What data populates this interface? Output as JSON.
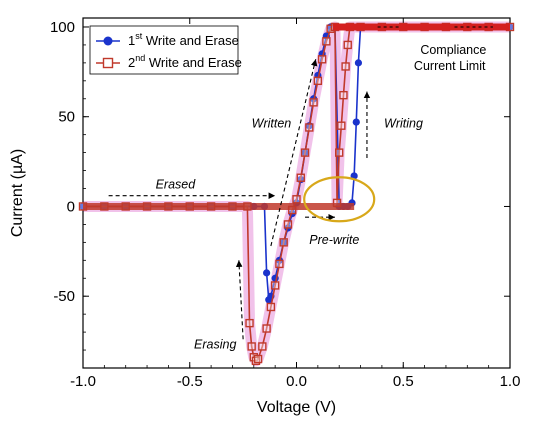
{
  "chart_data": {
    "type": "scatter",
    "xlabel": "Voltage (V)",
    "ylabel": "Current (µA)",
    "xlim": [
      -1.0,
      1.0
    ],
    "ylim": [
      -90,
      105
    ],
    "x_ticks": [
      -1.0,
      -0.5,
      0.0,
      0.5,
      1.0
    ],
    "x_tick_labels": [
      "-1.0",
      "-0.5",
      "0.0",
      "0.5",
      "1.0"
    ],
    "y_ticks": [
      -50,
      0,
      50,
      100
    ],
    "y_tick_labels": [
      "-50",
      "0",
      "50",
      "100"
    ],
    "legend_position": "top-left",
    "series": [
      {
        "name_main": "1",
        "name_sup": "st",
        "name_rest": " Write and Erase",
        "color": "#1a33cc",
        "marker": "filled-circle",
        "x": [
          -1.0,
          -0.9,
          -0.8,
          -0.7,
          -0.6,
          -0.5,
          -0.4,
          -0.3,
          -0.2,
          -0.15,
          -0.14,
          -0.13,
          -0.12,
          -0.1,
          -0.08,
          -0.06,
          -0.04,
          -0.02,
          0.0,
          0.02,
          0.04,
          0.06,
          0.08,
          0.1,
          0.12,
          0.14,
          0.16,
          0.18,
          0.2,
          0.22,
          0.24,
          0.26,
          0.27,
          0.28,
          0.29,
          0.3,
          0.4,
          0.5,
          0.6,
          0.7,
          0.8,
          0.9,
          1.0
        ],
        "y": [
          0,
          0,
          0,
          0,
          0,
          0,
          0,
          0,
          0,
          0,
          -37,
          -52,
          -50,
          -40,
          -30,
          -20,
          -12,
          -4,
          2,
          15,
          30,
          45,
          60,
          73,
          85,
          95,
          100,
          100,
          0,
          0,
          0,
          2,
          17,
          47,
          80,
          100,
          100,
          100,
          100,
          100,
          100,
          100,
          100
        ]
      },
      {
        "name_main": "2",
        "name_sup": "nd",
        "name_rest": " Write and Erase",
        "color": "#c0392b",
        "marker": "open-square",
        "x": [
          -1.0,
          -0.9,
          -0.8,
          -0.7,
          -0.6,
          -0.5,
          -0.4,
          -0.3,
          -0.23,
          -0.22,
          -0.21,
          -0.2,
          -0.19,
          -0.18,
          -0.16,
          -0.14,
          -0.12,
          -0.1,
          -0.08,
          -0.06,
          -0.04,
          -0.02,
          0.0,
          0.02,
          0.04,
          0.06,
          0.08,
          0.1,
          0.12,
          0.14,
          0.16,
          0.18,
          0.19,
          0.2,
          0.21,
          0.22,
          0.23,
          0.24,
          0.25,
          0.3,
          0.4,
          0.5,
          0.6,
          0.7,
          0.8,
          0.9,
          1.0
        ],
        "y": [
          0,
          0,
          0,
          0,
          0,
          0,
          0,
          0,
          0,
          -65,
          -78,
          -84,
          -86,
          -85,
          -78,
          -68,
          -56,
          -44,
          -32,
          -20,
          -10,
          -2,
          4,
          16,
          30,
          44,
          58,
          70,
          82,
          92,
          99,
          100,
          2,
          30,
          45,
          62,
          78,
          90,
          100,
          100,
          100,
          100,
          100,
          100,
          100,
          100,
          100
        ]
      }
    ],
    "annotations": [
      {
        "text": "Erased",
        "style": "italic"
      },
      {
        "text": "Written",
        "style": "italic"
      },
      {
        "text": "Writing",
        "style": "italic"
      },
      {
        "text": "Pre-write",
        "style": "italic"
      },
      {
        "text": "Erasing",
        "style": "italic"
      },
      {
        "text": "Compliance",
        "style": "normal"
      },
      {
        "text": "Current Limit",
        "style": "normal"
      }
    ],
    "highlight_color": "#d8a81a",
    "glow_color": "#e58fd9"
  }
}
